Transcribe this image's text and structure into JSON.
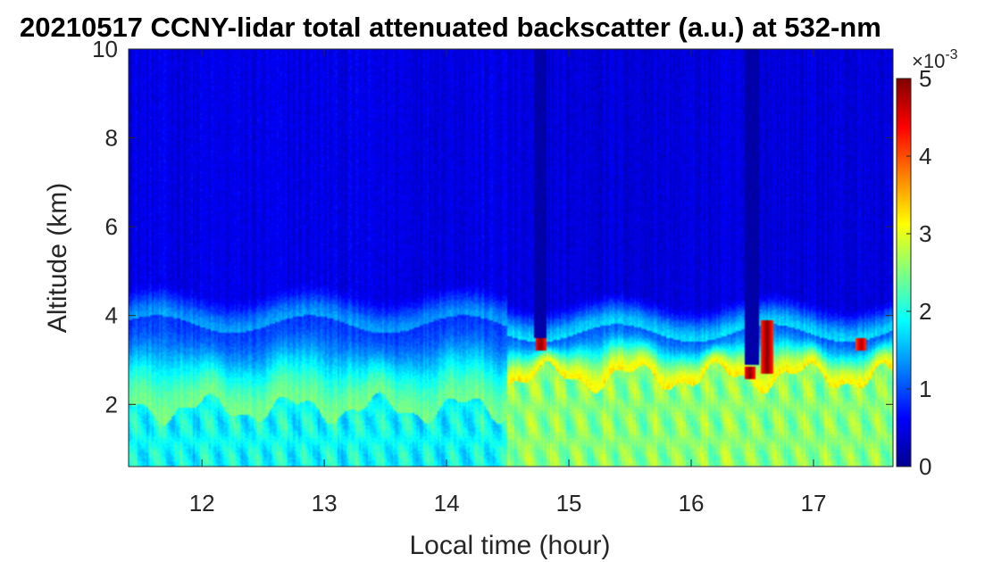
{
  "chart_data": {
    "type": "heatmap",
    "title": "20210517 CCNY-lidar total attenuated backscatter (a.u.) at 532-nm",
    "xlabel": "Local time (hour)",
    "ylabel": "Altitude (km)",
    "xlim": [
      11.4,
      17.65
    ],
    "ylim": [
      0.6,
      10
    ],
    "xticks": [
      12,
      13,
      14,
      15,
      16,
      17
    ],
    "yticks": [
      2,
      4,
      6,
      8,
      10
    ],
    "colorbar": {
      "colormap": "jet",
      "range": [
        0,
        5
      ],
      "ticks": [
        0,
        1,
        2,
        3,
        4,
        5
      ],
      "multiplier_base": "×10",
      "multiplier_exponent": "-3"
    },
    "background_layers": [
      {
        "x_range": [
          11.4,
          14.5
        ],
        "boundary_layer_top_km": 1.9,
        "boundary_layer_value": 1.9,
        "residual_layer_top_km": 3.8,
        "residual_layer_value": 1.4,
        "free_troposphere_value": 0.5
      },
      {
        "x_range": [
          14.5,
          17.65
        ],
        "boundary_layer_top_km": 2.6,
        "boundary_layer_value": 2.55,
        "residual_layer_top_km": 3.6,
        "residual_layer_value": 1.7,
        "free_troposphere_value": 0.45
      }
    ],
    "features": [
      {
        "name": "cloud",
        "x": 14.77,
        "y_range": [
          3.2,
          3.5
        ],
        "value": 5
      },
      {
        "name": "cloud",
        "x": 16.48,
        "y_range": [
          2.55,
          2.85
        ],
        "value": 5
      },
      {
        "name": "cloud",
        "x": 16.62,
        "y_range": [
          2.7,
          3.9
        ],
        "value": 5
      },
      {
        "name": "cloud",
        "x": 17.39,
        "y_range": [
          3.2,
          3.5
        ],
        "value": 4.8
      },
      {
        "name": "signal dropout",
        "x_range": [
          14.71,
          14.82
        ],
        "y_range": [
          3.5,
          10
        ],
        "value": 0.2
      },
      {
        "name": "signal dropout",
        "x_range": [
          16.44,
          16.55
        ],
        "y_range": [
          2.9,
          10
        ],
        "value": 0.2
      }
    ]
  }
}
